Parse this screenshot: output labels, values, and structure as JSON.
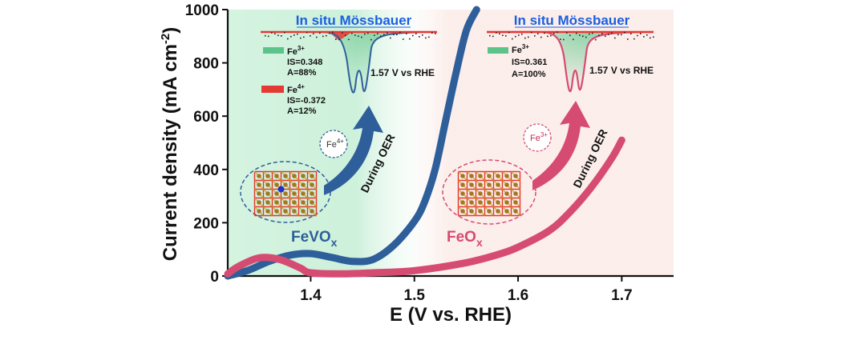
{
  "chart_data": {
    "type": "line",
    "xlabel": "E (V vs. RHE)",
    "ylabel_main": "Current density (mA cm",
    "ylabel_sup": "-2",
    "ylabel_close": ")",
    "xlim": [
      1.32,
      1.75
    ],
    "ylim": [
      0,
      1000
    ],
    "xticks": [
      1.4,
      1.5,
      1.6,
      1.7
    ],
    "xtick_labels": [
      "1.4",
      "1.5",
      "1.6",
      "1.7"
    ],
    "yticks": [
      0,
      200,
      400,
      600,
      800,
      1000
    ],
    "ytick_labels": [
      "0",
      "200",
      "400",
      "600",
      "800",
      "1000"
    ],
    "series": [
      {
        "name": "FeVOx",
        "label_main": "FeVO",
        "label_sub": "x",
        "color": "#2e5f9a",
        "x": [
          1.32,
          1.34,
          1.36,
          1.38,
          1.4,
          1.42,
          1.44,
          1.46,
          1.48,
          1.5,
          1.51,
          1.52,
          1.53,
          1.54,
          1.55,
          1.56
        ],
        "y": [
          0,
          22,
          55,
          78,
          84,
          70,
          55,
          62,
          115,
          205,
          280,
          400,
          580,
          760,
          920,
          1000
        ]
      },
      {
        "name": "FeOx",
        "label_main": "FeO",
        "label_sub": "x",
        "color": "#d64b72",
        "x": [
          1.32,
          1.33,
          1.35,
          1.37,
          1.39,
          1.4,
          1.43,
          1.46,
          1.5,
          1.55,
          1.58,
          1.6,
          1.63,
          1.65,
          1.67,
          1.69,
          1.7
        ],
        "y": [
          8,
          35,
          68,
          62,
          30,
          12,
          8,
          12,
          20,
          50,
          80,
          108,
          170,
          240,
          330,
          440,
          510
        ]
      }
    ],
    "insets": [
      {
        "title": "In situ Mössbauer",
        "potential": "1.57 V vs RHE",
        "components": [
          {
            "ion": "Fe",
            "charge": "3+",
            "is_text": "IS=0.348",
            "area_text": "A=88%",
            "color": "#5cc48a"
          },
          {
            "ion": "Fe",
            "charge": "4+",
            "is_text": "IS=-0.372",
            "area_text": "A=12%",
            "color": "#e53935"
          }
        ],
        "ion_marker": {
          "ion": "Fe",
          "charge": "4+"
        },
        "arrow_label": "During OER",
        "fit_color": "#2e5f9a"
      },
      {
        "title": "In situ Mössbauer",
        "potential": "1.57 V vs RHE",
        "components": [
          {
            "ion": "Fe",
            "charge": "3+",
            "is_text": "IS=0.361",
            "area_text": "A=100%",
            "color": "#5cc48a"
          }
        ],
        "ion_marker": {
          "ion": "Fe",
          "charge": "3+"
        },
        "arrow_label": "During OER",
        "fit_color": "#d64b72"
      }
    ]
  }
}
